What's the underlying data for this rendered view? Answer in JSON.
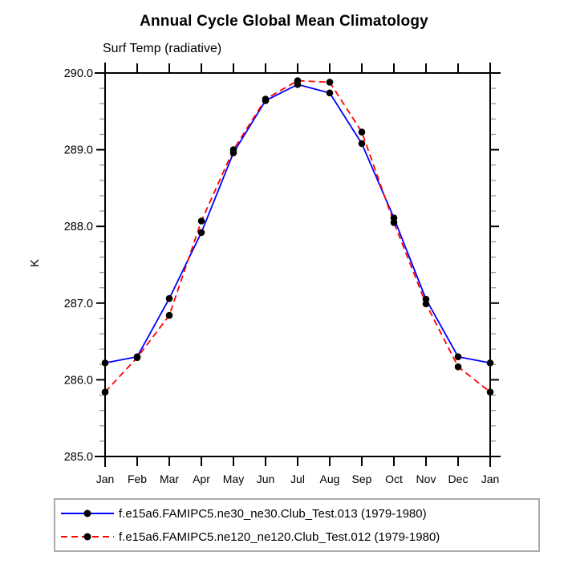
{
  "chart_data": {
    "type": "line",
    "title": "Annual Cycle Global Mean Climatology",
    "subtitle": "Surf Temp (radiative)",
    "ylabel": "K",
    "xlabel": "",
    "categories": [
      "Jan",
      "Feb",
      "Mar",
      "Apr",
      "May",
      "Jun",
      "Jul",
      "Aug",
      "Sep",
      "Oct",
      "Nov",
      "Dec",
      "Jan"
    ],
    "ylim": [
      285.0,
      290.0
    ],
    "ytick_major_step": 1.0,
    "ytick_minor_step": 0.2,
    "ytick_labels": [
      "285.0",
      "286.0",
      "287.0",
      "288.0",
      "289.0",
      "290.0"
    ],
    "grid": false,
    "axis_color": "#000000",
    "minor_tick_color": "#999999",
    "legend_position": "bottom-boxed",
    "legend_border_color": "#ababab",
    "series": [
      {
        "name": "f.e15a6.FAMIPC5.ne30_ne30.Club_Test.013 (1979-1980)",
        "line_color": "#0000ff",
        "line_style": "solid",
        "marker": "filled-circle",
        "marker_color": "#000000",
        "values": [
          286.22,
          286.3,
          287.06,
          287.92,
          288.96,
          289.64,
          289.85,
          289.74,
          289.08,
          288.11,
          287.05,
          286.3,
          286.22
        ]
      },
      {
        "name": "f.e15a6.FAMIPC5.ne120_ne120.Club_Test.012 (1979-1980)",
        "line_color": "#ff0000",
        "line_style": "dashed",
        "marker": "filled-circle",
        "marker_color": "#000000",
        "values": [
          285.84,
          286.29,
          286.84,
          288.07,
          289.0,
          289.66,
          289.9,
          289.88,
          289.23,
          288.05,
          286.99,
          286.17,
          285.84
        ]
      }
    ]
  }
}
